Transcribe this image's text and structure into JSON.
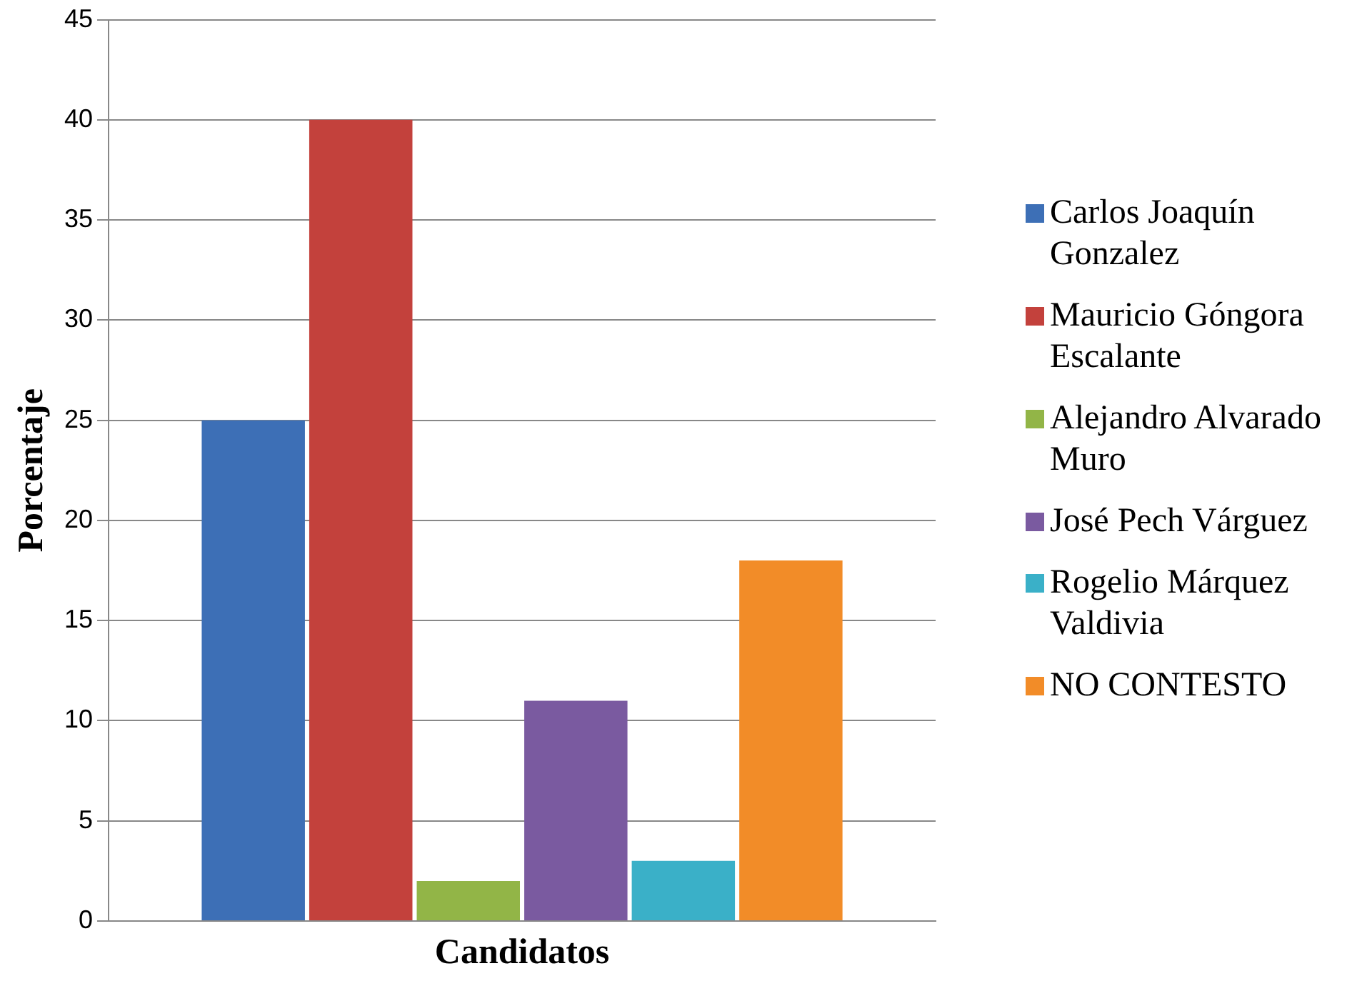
{
  "chart_data": {
    "type": "bar",
    "xlabel": "Candidatos",
    "ylabel": "Porcentaje",
    "categories": [
      null
    ],
    "series": [
      {
        "name": "Carlos Joaquín Gonzalez",
        "color": "#3d6fb6",
        "values": [
          25
        ]
      },
      {
        "name": "Mauricio Góngora Escalante",
        "color": "#c3413c",
        "values": [
          40
        ]
      },
      {
        "name": "Alejandro Alvarado Muro",
        "color": "#92b547",
        "values": [
          2
        ]
      },
      {
        "name": "José Pech Várguez",
        "color": "#7a5aa0",
        "values": [
          11
        ]
      },
      {
        "name": "Rogelio Márquez Valdivia",
        "color": "#3ab0c8",
        "values": [
          3
        ]
      },
      {
        "name": "NO CONTESTO",
        "color": "#f28c28",
        "values": [
          18
        ]
      }
    ],
    "ylim": [
      0,
      45
    ],
    "yticks": [
      0,
      5,
      10,
      15,
      20,
      25,
      30,
      35,
      40,
      45
    ],
    "grid": "y",
    "legend": "right"
  }
}
